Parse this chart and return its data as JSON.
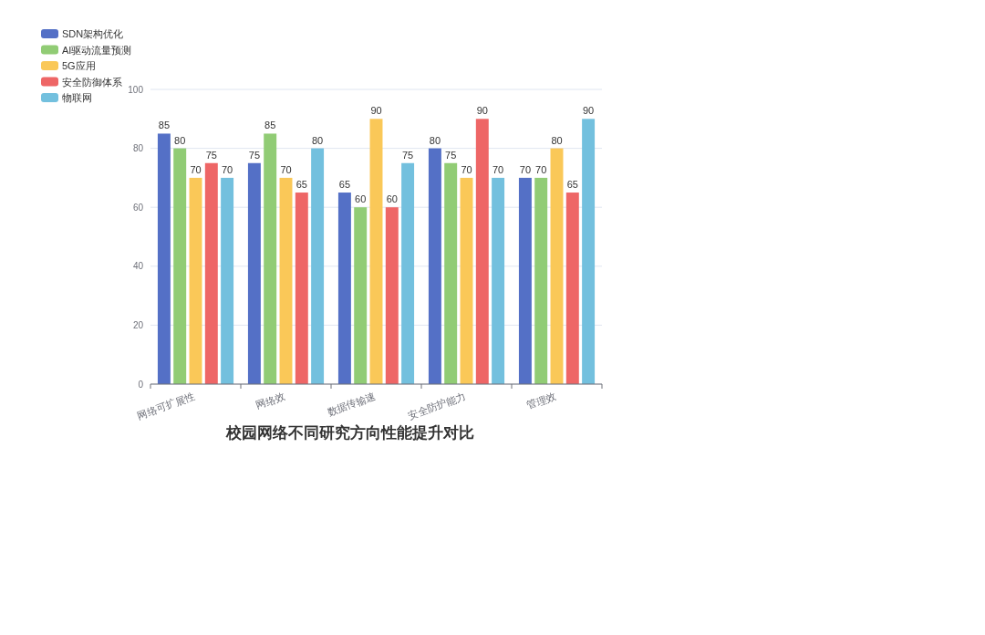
{
  "chart_data": {
    "type": "bar",
    "title": "校园网络不同研究方向性能提升对比",
    "categories": [
      "网络可扩展性",
      "网络效",
      "数据传输速",
      "安全防护能力",
      "管理效"
    ],
    "series": [
      {
        "name": "SDN架构优化",
        "color": "#5470c6",
        "values": [
          85,
          75,
          65,
          80,
          70
        ]
      },
      {
        "name": "AI驱动流量预测",
        "color": "#91cc75",
        "values": [
          80,
          85,
          60,
          75,
          70
        ]
      },
      {
        "name": "5G应用",
        "color": "#fac858",
        "values": [
          70,
          70,
          90,
          70,
          80
        ]
      },
      {
        "name": "安全防御体系",
        "color": "#ee6666",
        "values": [
          75,
          65,
          60,
          90,
          65
        ]
      },
      {
        "name": "物联网",
        "color": "#73c0de",
        "values": [
          70,
          80,
          75,
          70,
          90
        ]
      }
    ],
    "ylim": [
      0,
      100
    ],
    "yticks": [
      0,
      20,
      40,
      60,
      80,
      100
    ],
    "grid": "y",
    "legend": "top left",
    "data_labels": true
  }
}
